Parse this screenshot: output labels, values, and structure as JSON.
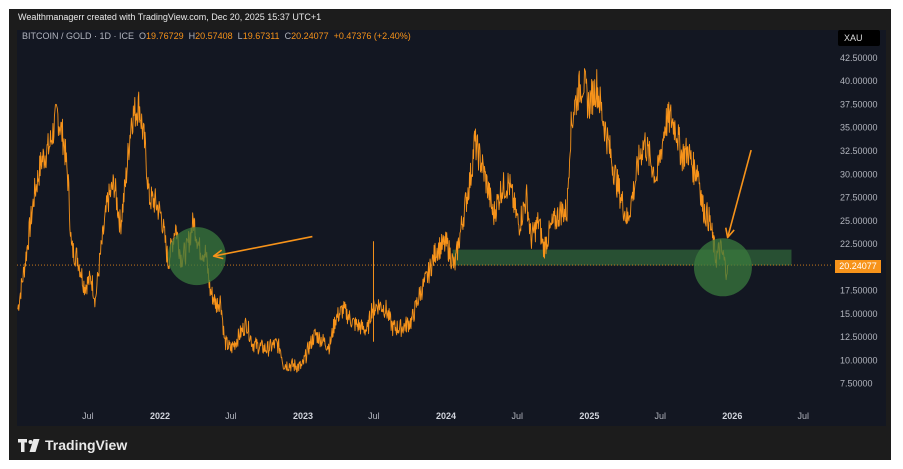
{
  "header": {
    "credit": "Wealthmanagerr created with TradingView.com, Dec 20, 2025 15:37 UTC+1"
  },
  "legend": {
    "symbol": "BITCOIN / GOLD · 1D · ICE",
    "o_label": "O",
    "o_value": "19.76729",
    "h_label": "H",
    "h_value": "20.57408",
    "l_label": "L",
    "l_value": "19.67311",
    "c_label": "C",
    "c_value": "20.24077",
    "change": "+0.47376 (+2.40%)"
  },
  "currency_button": "XAU",
  "last_price": "20.24077",
  "brand": "TradingView",
  "colors": {
    "price": "#f7931a",
    "background": "#131722",
    "zone": "#2d5a36",
    "circle": "#3a7a3e",
    "arrow": "#f7931a"
  },
  "chart_data": {
    "type": "line",
    "title": "BITCOIN / GOLD",
    "y_ticks": [
      "7.50000",
      "10.00000",
      "12.50000",
      "15.00000",
      "17.50000",
      "20.00000",
      "22.50000",
      "25.00000",
      "27.50000",
      "30.00000",
      "32.50000",
      "35.00000",
      "37.50000",
      "40.00000",
      "42.50000"
    ],
    "y_tick_values": [
      7.5,
      10,
      12.5,
      15,
      17.5,
      20,
      22.5,
      25,
      27.5,
      30,
      32.5,
      35,
      37.5,
      40,
      42.5
    ],
    "x_ticks": [
      {
        "label": "Jul",
        "date": "2021-07-01",
        "bold": false
      },
      {
        "label": "2022",
        "date": "2022-01-01",
        "bold": true
      },
      {
        "label": "Jul",
        "date": "2022-07-01",
        "bold": false
      },
      {
        "label": "2023",
        "date": "2023-01-01",
        "bold": true
      },
      {
        "label": "Jul",
        "date": "2023-07-01",
        "bold": false
      },
      {
        "label": "2024",
        "date": "2024-01-01",
        "bold": true
      },
      {
        "label": "Jul",
        "date": "2024-07-01",
        "bold": false
      },
      {
        "label": "2025",
        "date": "2025-01-01",
        "bold": true
      },
      {
        "label": "Jul",
        "date": "2025-07-01",
        "bold": false
      },
      {
        "label": "2026",
        "date": "2026-01-01",
        "bold": true
      },
      {
        "label": "Jul",
        "date": "2026-07-01",
        "bold": false
      }
    ],
    "ylim": [
      5.2,
      44.0
    ],
    "xlim": [
      "2021-01-01",
      "2026-09-15"
    ],
    "series": [
      {
        "points": [
          [
            "2021-01-03",
            15.5
          ],
          [
            "2021-01-20",
            20.0
          ],
          [
            "2021-02-15",
            28.0
          ],
          [
            "2021-03-05",
            31.5
          ],
          [
            "2021-03-25",
            33.0
          ],
          [
            "2021-04-14",
            36.5
          ],
          [
            "2021-05-01",
            33.5
          ],
          [
            "2021-05-12",
            29.0
          ],
          [
            "2021-05-20",
            22.0
          ],
          [
            "2021-06-05",
            21.0
          ],
          [
            "2021-06-22",
            18.0
          ],
          [
            "2021-07-10",
            18.8
          ],
          [
            "2021-07-20",
            16.5
          ],
          [
            "2021-08-01",
            21.0
          ],
          [
            "2021-08-20",
            27.0
          ],
          [
            "2021-09-06",
            29.0
          ],
          [
            "2021-09-22",
            24.5
          ],
          [
            "2021-10-05",
            29.0
          ],
          [
            "2021-10-20",
            36.0
          ],
          [
            "2021-11-09",
            37.5
          ],
          [
            "2021-11-25",
            32.5
          ],
          [
            "2021-12-04",
            27.5
          ],
          [
            "2021-12-20",
            27.0
          ],
          [
            "2022-01-05",
            25.5
          ],
          [
            "2022-01-22",
            20.5
          ],
          [
            "2022-02-10",
            24.5
          ],
          [
            "2022-02-24",
            21.0
          ],
          [
            "2022-03-10",
            21.8
          ],
          [
            "2022-03-28",
            25.0
          ],
          [
            "2022-04-12",
            22.0
          ],
          [
            "2022-04-28",
            21.5
          ],
          [
            "2022-05-09",
            17.5
          ],
          [
            "2022-05-25",
            16.0
          ],
          [
            "2022-06-05",
            16.5
          ],
          [
            "2022-06-15",
            12.0
          ],
          [
            "2022-07-01",
            11.2
          ],
          [
            "2022-07-20",
            12.5
          ],
          [
            "2022-08-10",
            14.0
          ],
          [
            "2022-08-25",
            11.8
          ],
          [
            "2022-09-10",
            11.5
          ],
          [
            "2022-10-01",
            11.2
          ],
          [
            "2022-10-25",
            11.8
          ],
          [
            "2022-11-05",
            11.2
          ],
          [
            "2022-11-12",
            9.6
          ],
          [
            "2022-12-01",
            9.5
          ],
          [
            "2022-12-30",
            9.3
          ],
          [
            "2023-01-15",
            11.3
          ],
          [
            "2023-02-01",
            12.8
          ],
          [
            "2023-03-10",
            11.5
          ],
          [
            "2023-03-25",
            14.5
          ],
          [
            "2023-04-14",
            15.5
          ],
          [
            "2023-05-10",
            14.0
          ],
          [
            "2023-06-15",
            13.2
          ],
          [
            "2023-06-25",
            15.5
          ],
          [
            "2023-07-14",
            16.0
          ],
          [
            "2023-08-01",
            15.5
          ],
          [
            "2023-08-18",
            13.5
          ],
          [
            "2023-09-10",
            13.5
          ],
          [
            "2023-10-05",
            14.2
          ],
          [
            "2023-10-25",
            17.0
          ],
          [
            "2023-11-15",
            19.0
          ],
          [
            "2023-12-08",
            22.0
          ],
          [
            "2024-01-03",
            22.5
          ],
          [
            "2024-01-23",
            20.0
          ],
          [
            "2024-02-12",
            25.0
          ],
          [
            "2024-03-05",
            30.0
          ],
          [
            "2024-03-14",
            33.5
          ],
          [
            "2024-04-02",
            31.0
          ],
          [
            "2024-04-20",
            28.0
          ],
          [
            "2024-05-01",
            25.5
          ],
          [
            "2024-05-22",
            28.5
          ],
          [
            "2024-06-10",
            29.0
          ],
          [
            "2024-07-05",
            24.5
          ],
          [
            "2024-07-25",
            27.5
          ],
          [
            "2024-08-05",
            23.0
          ],
          [
            "2024-08-25",
            25.0
          ],
          [
            "2024-09-06",
            22.0
          ],
          [
            "2024-09-28",
            24.5
          ],
          [
            "2024-10-20",
            26.0
          ],
          [
            "2024-11-05",
            26.0
          ],
          [
            "2024-11-13",
            34.0
          ],
          [
            "2024-11-22",
            37.0
          ],
          [
            "2024-12-05",
            39.0
          ],
          [
            "2024-12-17",
            40.0
          ],
          [
            "2024-12-30",
            37.5
          ],
          [
            "2025-01-20",
            39.5
          ],
          [
            "2025-02-05",
            36.0
          ],
          [
            "2025-02-25",
            32.0
          ],
          [
            "2025-03-10",
            29.5
          ],
          [
            "2025-04-08",
            25.0
          ],
          [
            "2025-04-25",
            28.5
          ],
          [
            "2025-05-10",
            32.0
          ],
          [
            "2025-05-22",
            33.5
          ],
          [
            "2025-06-10",
            31.0
          ],
          [
            "2025-06-22",
            29.5
          ],
          [
            "2025-07-14",
            35.5
          ],
          [
            "2025-07-28",
            36.0
          ],
          [
            "2025-08-10",
            35.0
          ],
          [
            "2025-08-25",
            32.0
          ],
          [
            "2025-09-10",
            32.5
          ],
          [
            "2025-09-25",
            30.5
          ],
          [
            "2025-10-06",
            30.5
          ],
          [
            "2025-10-17",
            26.5
          ],
          [
            "2025-11-04",
            25.0
          ],
          [
            "2025-11-20",
            21.0
          ],
          [
            "2025-12-01",
            22.0
          ],
          [
            "2025-12-10",
            21.0
          ],
          [
            "2025-12-15",
            19.8
          ],
          [
            "2025-12-20",
            20.24
          ]
        ]
      }
    ],
    "annotations": [
      {
        "type": "zone",
        "from": "2024-01-18",
        "to": "2026-06-01",
        "ymin": 20.2,
        "ymax": 21.9
      },
      {
        "type": "circle",
        "date": "2022-04-05",
        "y": 21.2
      },
      {
        "type": "circle",
        "date": "2025-12-08",
        "y": 20.0
      },
      {
        "type": "arrow",
        "from_date": "2023-01-25",
        "from_y": 23.3,
        "to_date": "2022-05-18",
        "to_y": 21.2
      },
      {
        "type": "arrow",
        "from_date": "2026-02-18",
        "from_y": 32.6,
        "to_date": "2025-12-20",
        "to_y": 23.2
      },
      {
        "type": "price-line",
        "y": 20.24077
      }
    ]
  }
}
